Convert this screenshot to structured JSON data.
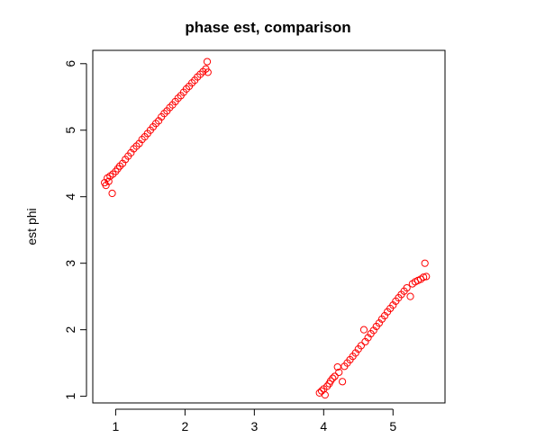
{
  "chart_data": {
    "type": "scatter",
    "title": "phase est, comparison",
    "xlabel": "",
    "ylabel": "est phi",
    "xlim": [
      0.67,
      5.75
    ],
    "ylim": [
      0.9,
      6.2
    ],
    "x_ticks": [
      1,
      2,
      3,
      4,
      5
    ],
    "y_ticks": [
      1,
      2,
      3,
      4,
      5,
      6
    ],
    "grid": false,
    "legend": "none",
    "marker": "open-circle",
    "point_color": "#ff0000",
    "series": [
      {
        "points": [
          [
            0.84,
            4.21
          ],
          [
            0.86,
            4.17
          ],
          [
            0.88,
            4.28
          ],
          [
            0.9,
            4.23
          ],
          [
            0.92,
            4.31
          ],
          [
            0.95,
            4.05
          ],
          [
            0.96,
            4.34
          ],
          [
            1.0,
            4.38
          ],
          [
            1.03,
            4.42
          ],
          [
            1.06,
            4.46
          ],
          [
            1.1,
            4.5
          ],
          [
            1.14,
            4.56
          ],
          [
            1.18,
            4.61
          ],
          [
            1.22,
            4.66
          ],
          [
            1.26,
            4.72
          ],
          [
            1.3,
            4.76
          ],
          [
            1.34,
            4.8
          ],
          [
            1.38,
            4.86
          ],
          [
            1.42,
            4.9
          ],
          [
            1.46,
            4.95
          ],
          [
            1.5,
            5.0
          ],
          [
            1.54,
            5.05
          ],
          [
            1.58,
            5.1
          ],
          [
            1.62,
            5.14
          ],
          [
            1.66,
            5.2
          ],
          [
            1.7,
            5.25
          ],
          [
            1.74,
            5.29
          ],
          [
            1.78,
            5.34
          ],
          [
            1.82,
            5.38
          ],
          [
            1.86,
            5.43
          ],
          [
            1.9,
            5.48
          ],
          [
            1.94,
            5.52
          ],
          [
            1.98,
            5.57
          ],
          [
            2.02,
            5.62
          ],
          [
            2.06,
            5.66
          ],
          [
            2.1,
            5.71
          ],
          [
            2.14,
            5.75
          ],
          [
            2.18,
            5.8
          ],
          [
            2.22,
            5.84
          ],
          [
            2.26,
            5.88
          ],
          [
            2.3,
            5.92
          ],
          [
            2.32,
            6.03
          ],
          [
            2.33,
            5.87
          ]
        ]
      },
      {
        "points": [
          [
            3.94,
            1.05
          ],
          [
            3.97,
            1.08
          ],
          [
            4.0,
            1.11
          ],
          [
            4.02,
            1.02
          ],
          [
            4.05,
            1.15
          ],
          [
            4.08,
            1.19
          ],
          [
            4.1,
            1.23
          ],
          [
            4.13,
            1.27
          ],
          [
            4.16,
            1.3
          ],
          [
            4.2,
            1.44
          ],
          [
            4.22,
            1.36
          ],
          [
            4.27,
            1.22
          ],
          [
            4.3,
            1.45
          ],
          [
            4.34,
            1.5
          ],
          [
            4.38,
            1.55
          ],
          [
            4.42,
            1.6
          ],
          [
            4.46,
            1.65
          ],
          [
            4.5,
            1.71
          ],
          [
            4.54,
            1.76
          ],
          [
            4.58,
            2.0
          ],
          [
            4.6,
            1.82
          ],
          [
            4.64,
            1.88
          ],
          [
            4.68,
            1.94
          ],
          [
            4.72,
            1.99
          ],
          [
            4.76,
            2.05
          ],
          [
            4.8,
            2.1
          ],
          [
            4.84,
            2.16
          ],
          [
            4.88,
            2.21
          ],
          [
            4.92,
            2.27
          ],
          [
            4.96,
            2.32
          ],
          [
            5.0,
            2.37
          ],
          [
            5.04,
            2.43
          ],
          [
            5.08,
            2.48
          ],
          [
            5.12,
            2.53
          ],
          [
            5.16,
            2.58
          ],
          [
            5.2,
            2.63
          ],
          [
            5.25,
            2.5
          ],
          [
            5.28,
            2.69
          ],
          [
            5.32,
            2.72
          ],
          [
            5.36,
            2.74
          ],
          [
            5.4,
            2.76
          ],
          [
            5.44,
            2.79
          ],
          [
            5.46,
            3.0
          ],
          [
            5.48,
            2.8
          ]
        ]
      }
    ]
  }
}
